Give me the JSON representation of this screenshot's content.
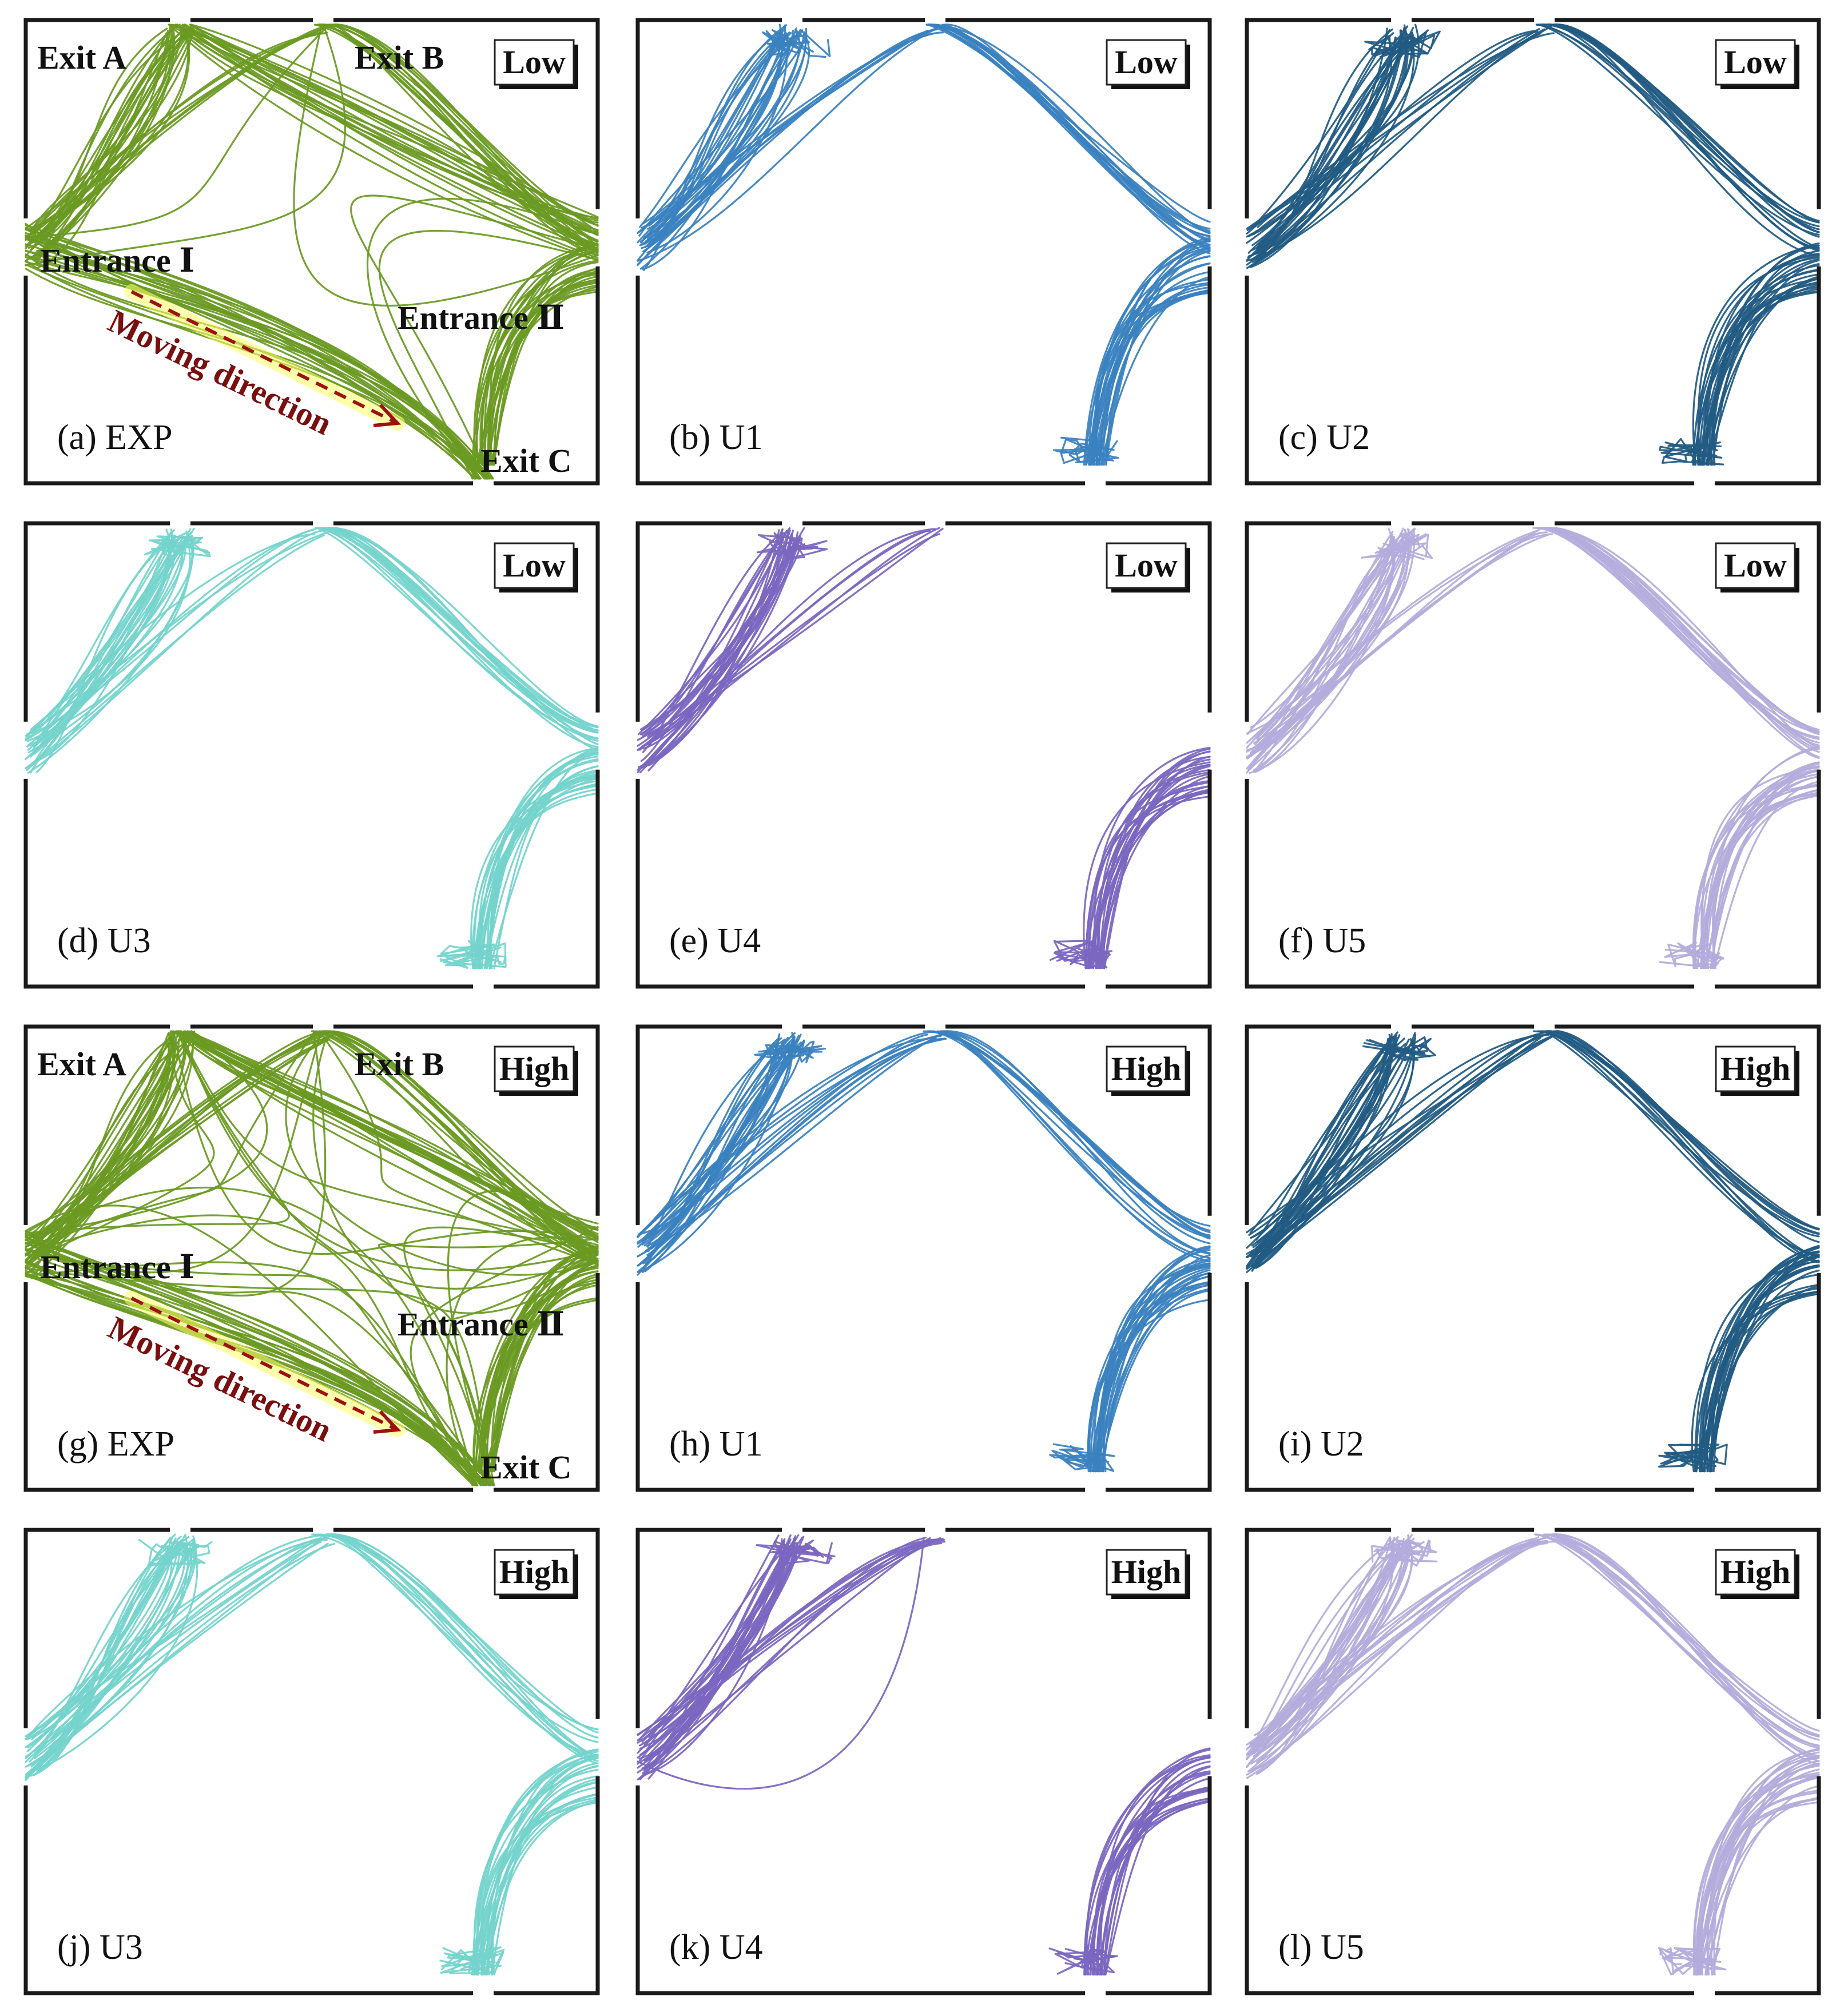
{
  "figure": {
    "type": "trajectory_panels",
    "colors": {
      "EXP": "#6a9a22",
      "U1": "#3a81c0",
      "U2": "#215a82",
      "U3": "#74d4cc",
      "U4": "#7b66c0",
      "U5": "#b4acdc",
      "arrow": "#a01010"
    },
    "panels": [
      {
        "id": "a",
        "caption": "(a) EXP",
        "model": "EXP",
        "density": "Low",
        "labels": {
          "exit_a": "Exit A",
          "exit_b": "Exit B",
          "exit_c": "Exit C",
          "entrance_1": "Entrance Ⅰ",
          "entrance_2": "Entrance Ⅱ",
          "moving": "Moving direction"
        }
      },
      {
        "id": "b",
        "caption": "(b) U1",
        "model": "U1",
        "density": "Low"
      },
      {
        "id": "c",
        "caption": "(c) U2",
        "model": "U2",
        "density": "Low"
      },
      {
        "id": "d",
        "caption": "(d) U3",
        "model": "U3",
        "density": "Low"
      },
      {
        "id": "e",
        "caption": "(e) U4",
        "model": "U4",
        "density": "Low"
      },
      {
        "id": "f",
        "caption": "(f) U5",
        "model": "U5",
        "density": "Low"
      },
      {
        "id": "g",
        "caption": "(g) EXP",
        "model": "EXP",
        "density": "High",
        "labels": {
          "exit_a": "Exit A",
          "exit_b": "Exit B",
          "exit_c": "Exit C",
          "entrance_1": "Entrance Ⅰ",
          "entrance_2": "Entrance Ⅱ",
          "moving": "Moving direction"
        }
      },
      {
        "id": "h",
        "caption": "(h) U1",
        "model": "U1",
        "density": "High"
      },
      {
        "id": "i",
        "caption": "(i) U2",
        "model": "U2",
        "density": "High"
      },
      {
        "id": "j",
        "caption": "(j) U3",
        "model": "U3",
        "density": "High"
      },
      {
        "id": "k",
        "caption": "(k) U4",
        "model": "U4",
        "density": "High"
      },
      {
        "id": "l",
        "caption": "(l) U5",
        "model": "U5",
        "density": "High"
      }
    ]
  }
}
